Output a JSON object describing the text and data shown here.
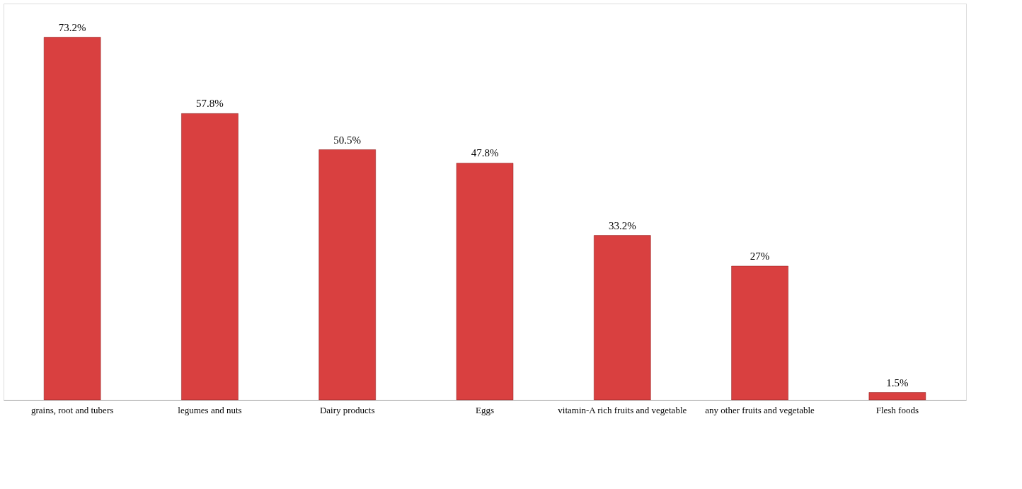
{
  "chart_data": {
    "type": "bar",
    "categories": [
      "grains, root and tubers",
      "legumes and nuts",
      "Dairy products",
      "Eggs",
      "vitamin-A rich fruits and vegetable",
      "any other fruits and vegetable",
      "Flesh foods"
    ],
    "values": [
      73.2,
      57.8,
      50.5,
      47.8,
      33.2,
      27,
      1.5
    ],
    "value_labels": [
      "73.2%",
      "57.8%",
      "50.5%",
      "47.8%",
      "33.2%",
      "27%",
      "1.5%"
    ],
    "color": "#d94040"
  }
}
